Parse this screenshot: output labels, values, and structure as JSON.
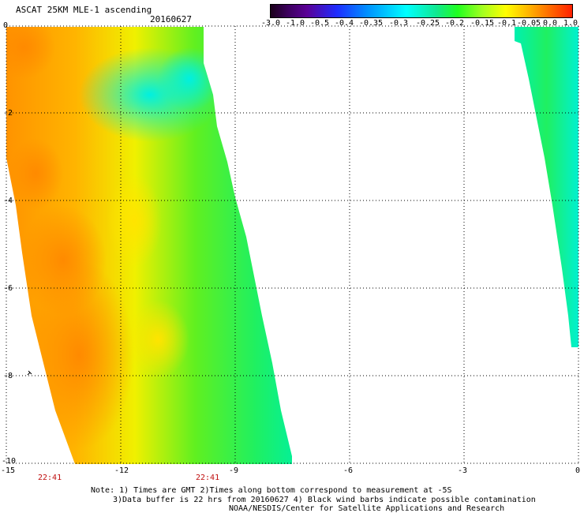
{
  "title": "ASCAT 25KM MLE-1 ascending",
  "date": "20160627",
  "colorbar": {
    "labels": [
      "-3.0",
      "-1.0",
      "-0.5",
      "-0.4",
      "-0.35",
      "-0.3",
      "-0.25",
      "-0.2",
      "-0.15",
      "-0.1",
      "-0.05",
      "0.0",
      "1.0"
    ]
  },
  "axes": {
    "x_ticks": [
      "-15",
      "-12",
      "-9",
      "-6",
      "-3",
      "0"
    ],
    "y_ticks": [
      "0",
      "-2",
      "-4",
      "-6",
      "-8",
      "-10"
    ],
    "xlim": [
      -15,
      0
    ],
    "ylim": [
      -10,
      0
    ],
    "grid": "dotted"
  },
  "swath_times": [
    "22:41",
    "22:41"
  ],
  "notes": {
    "line1": "Note: 1) Times are GMT 2)Times along bottom correspond to measurement at -5S",
    "line2": "3)Data buffer is 22 hrs from 20160627 4) Black wind barbs indicate possible contamination",
    "line3": "NOAA/NESDIS/Center for Satellite Applications and Research"
  },
  "colors": {
    "orange": "#ff9a00",
    "yellow": "#f8f000",
    "green": "#20f020",
    "cyan": "#00f0c8"
  }
}
